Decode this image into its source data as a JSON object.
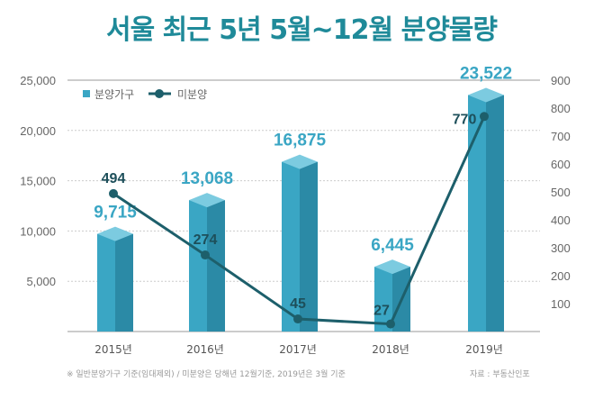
{
  "title": "서울 최근 5년 5월~12월 분양물량",
  "note": "※ 일반분양가구 기준(임대제외) / 미분양은 당해년 12월기준, 2019년은 3월 기준",
  "source": "자료 : 부동산인포",
  "chart_data": {
    "type": "bar+line",
    "title": "서울 최근 5년 5월~12월 분양물량",
    "categories": [
      "2015년",
      "2016년",
      "2017년",
      "2018년",
      "2019년"
    ],
    "series": [
      {
        "name": "분양가구",
        "type": "bar",
        "axis": "left",
        "values": [
          9715,
          13068,
          16875,
          6445,
          23522
        ],
        "labels": [
          "9,715",
          "13,068",
          "16,875",
          "6,445",
          "23,522"
        ],
        "color": "#3aa6c4"
      },
      {
        "name": "미분양",
        "type": "line",
        "axis": "right",
        "values": [
          494,
          274,
          45,
          27,
          770
        ],
        "labels": [
          "494",
          "274",
          "45",
          "27",
          "770"
        ],
        "color": "#1d5f6b"
      }
    ],
    "left_axis": {
      "range": [
        0,
        25000
      ],
      "ticks": [
        "5,000",
        "10,000",
        "15,000",
        "20,000",
        "25,000"
      ],
      "tick_values": [
        5000,
        10000,
        15000,
        20000,
        25000
      ]
    },
    "right_axis": {
      "range": [
        0,
        900
      ],
      "ticks": [
        "100",
        "200",
        "300",
        "400",
        "500",
        "600",
        "700",
        "800",
        "900"
      ],
      "tick_values": [
        100,
        200,
        300,
        400,
        500,
        600,
        700,
        800,
        900
      ]
    },
    "legend": "top-left",
    "grid": true
  }
}
